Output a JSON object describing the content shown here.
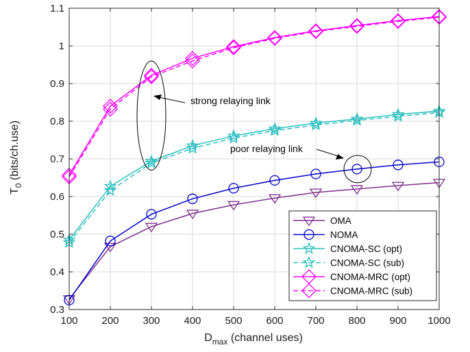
{
  "chart_data": {
    "type": "line",
    "xlabel": "D",
    "xlabel_sub": "max",
    "xlabel_rest": " (channel uses)",
    "ylabel": "T",
    "ylabel_sub": "0",
    "ylabel_rest": " (bits/ch.use)",
    "xlim": [
      100,
      1000
    ],
    "ylim": [
      0.3,
      1.1
    ],
    "xticks": [
      100,
      200,
      300,
      400,
      500,
      600,
      700,
      800,
      900,
      1000
    ],
    "yticks": [
      0.3,
      0.4,
      0.5,
      0.6,
      0.7,
      0.8,
      0.9,
      1.0,
      1.1
    ],
    "ytick_labels": [
      "0.3",
      "0.4",
      "0.5",
      "0.6",
      "0.7",
      "0.8",
      "0.9",
      "1",
      "1.1"
    ],
    "grid": true,
    "legend_position": "bottom-right",
    "x": [
      100,
      200,
      300,
      400,
      500,
      600,
      700,
      800,
      900,
      1000
    ],
    "series": [
      {
        "name": "OMA",
        "color": "#7E2F8E",
        "dash": "solid",
        "marker": "triangle-down",
        "values": [
          0.328,
          0.467,
          0.52,
          0.555,
          0.578,
          0.596,
          0.611,
          0.62,
          0.629,
          0.637
        ]
      },
      {
        "name": "NOMA",
        "color": "#0000CC",
        "dash": "solid",
        "marker": "circle",
        "values": [
          0.325,
          0.482,
          0.553,
          0.594,
          0.622,
          0.643,
          0.66,
          0.673,
          0.684,
          0.692
        ]
      },
      {
        "name": "CNOMA-SC (opt)",
        "color": "#2ABFBF",
        "dash": "solid",
        "marker": "star",
        "values": [
          0.485,
          0.627,
          0.694,
          0.735,
          0.761,
          0.78,
          0.795,
          0.806,
          0.818,
          0.827
        ]
      },
      {
        "name": "CNOMA-SC (sub)",
        "color": "#2ABFBF",
        "dash": "dashed",
        "marker": "star",
        "values": [
          0.478,
          0.616,
          0.689,
          0.728,
          0.755,
          0.775,
          0.79,
          0.802,
          0.813,
          0.823
        ]
      },
      {
        "name": "CNOMA-MRC (opt)",
        "color": "#FF00FF",
        "dash": "solid",
        "marker": "diamond",
        "values": [
          0.657,
          0.84,
          0.922,
          0.967,
          0.998,
          1.022,
          1.04,
          1.054,
          1.067,
          1.078
        ]
      },
      {
        "name": "CNOMA-MRC (sub)",
        "color": "#FF00FF",
        "dash": "dashed",
        "marker": "diamond",
        "values": [
          0.652,
          0.832,
          0.918,
          0.96,
          0.995,
          1.02,
          1.038,
          1.052,
          1.065,
          1.076
        ]
      }
    ],
    "annotations": [
      {
        "text": "strong relaying link",
        "ellipse_center": [
          300,
          0.815
        ],
        "ellipse_radii": [
          20,
          0.145
        ]
      },
      {
        "text": "poor relaying link",
        "ellipse_center": [
          800,
          0.673
        ],
        "ellipse_radii": [
          35,
          0.025
        ]
      }
    ]
  }
}
